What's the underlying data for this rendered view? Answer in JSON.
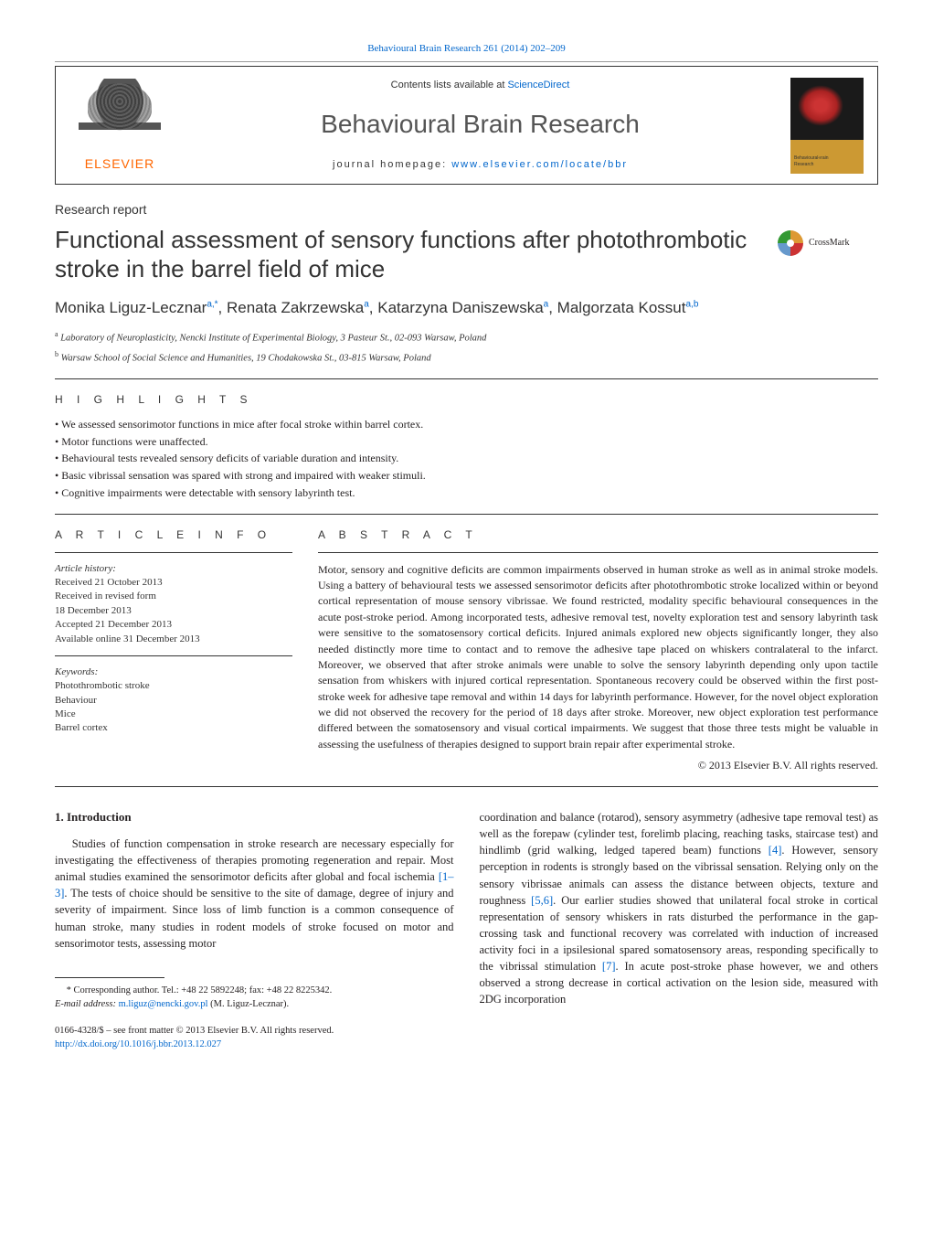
{
  "header": {
    "citation": "Behavioural Brain Research 261 (2014) 202–209",
    "publisher_name": "ELSEVIER",
    "contents_prefix": "Contents lists available at ",
    "contents_link": "ScienceDirect",
    "journal_title": "Behavioural Brain Research",
    "homepage_label": "journal homepage: ",
    "homepage_url": "www.elsevier.com/locate/bbr"
  },
  "article": {
    "report_type": "Research report",
    "title": "Functional assessment of sensory functions after photothrombotic stroke in the barrel field of mice",
    "crossmark_label": "CrossMark",
    "authors_html": "Monika Liguz-Lecznar<sup>a,*</sup>, Renata Zakrzewska<sup>a</sup>, Katarzyna Daniszewska<sup>a</sup>, Malgorzata Kossut<sup>a,b</sup>",
    "affiliations": [
      {
        "marker": "a",
        "text": "Laboratory of Neuroplasticity, Nencki Institute of Experimental Biology, 3 Pasteur St., 02-093 Warsaw, Poland"
      },
      {
        "marker": "b",
        "text": "Warsaw School of Social Science and Humanities, 19 Chodakowska St., 03-815 Warsaw, Poland"
      }
    ]
  },
  "highlights": {
    "label": "H I G H L I G H T S",
    "items": [
      "We assessed sensorimotor functions in mice after focal stroke within barrel cortex.",
      "Motor functions were unaffected.",
      "Behavioural tests revealed sensory deficits of variable duration and intensity.",
      "Basic vibrissal sensation was spared with strong and impaired with weaker stimuli.",
      "Cognitive impairments were detectable with sensory labyrinth test."
    ]
  },
  "info": {
    "label": "A R T I C L E   I N F O",
    "history_label": "Article history:",
    "history": [
      "Received 21 October 2013",
      "Received in revised form",
      "18 December 2013",
      "Accepted 21 December 2013",
      "Available online 31 December 2013"
    ],
    "keywords_label": "Keywords:",
    "keywords": [
      "Photothrombotic stroke",
      "Behaviour",
      "Mice",
      "Barrel cortex"
    ]
  },
  "abstract": {
    "label": "A B S T R A C T",
    "text": "Motor, sensory and cognitive deficits are common impairments observed in human stroke as well as in animal stroke models. Using a battery of behavioural tests we assessed sensorimotor deficits after photothrombotic stroke localized within or beyond cortical representation of mouse sensory vibrissae. We found restricted, modality specific behavioural consequences in the acute post-stroke period. Among incorporated tests, adhesive removal test, novelty exploration test and sensory labyrinth task were sensitive to the somatosensory cortical deficits. Injured animals explored new objects significantly longer, they also needed distinctly more time to contact and to remove the adhesive tape placed on whiskers contralateral to the infarct. Moreover, we observed that after stroke animals were unable to solve the sensory labyrinth depending only upon tactile sensation from whiskers with injured cortical representation. Spontaneous recovery could be observed within the first post-stroke week for adhesive tape removal and within 14 days for labyrinth performance. However, for the novel object exploration we did not observed the recovery for the period of 18 days after stroke. Moreover, new object exploration test performance differed between the somatosensory and visual cortical impairments. We suggest that those three tests might be valuable in assessing the usefulness of therapies designed to support brain repair after experimental stroke.",
    "copyright": "© 2013 Elsevier B.V. All rights reserved."
  },
  "body": {
    "section_number": "1.",
    "section_title": "Introduction",
    "col1": "Studies of function compensation in stroke research are necessary especially for investigating the effectiveness of therapies promoting regeneration and repair. Most animal studies examined the sensorimotor deficits after global and focal ischemia [1–3]. The tests of choice should be sensitive to the site of damage, degree of injury and severity of impairment. Since loss of limb function is a common consequence of human stroke, many studies in rodent models of stroke focused on motor and sensorimotor tests, assessing motor",
    "col1_ref": "[1–3]",
    "col2": "coordination and balance (rotarod), sensory asymmetry (adhesive tape removal test) as well as the forepaw (cylinder test, forelimb placing, reaching tasks, staircase test) and hindlimb (grid walking, ledged tapered beam) functions [4]. However, sensory perception in rodents is strongly based on the vibrissal sensation. Relying only on the sensory vibrissae animals can assess the distance between objects, texture and roughness [5,6]. Our earlier studies showed that unilateral focal stroke in cortical representation of sensory whiskers in rats disturbed the performance in the gap-crossing task and functional recovery was correlated with induction of increased activity foci in a ipsilesional spared somatosensory areas, responding specifically to the vibrissal stimulation [7]. In acute post-stroke phase however, we and others observed a strong decrease in cortical activation on the lesion side, measured with 2DG incorporation",
    "col2_refs": [
      "[4]",
      "[5,6]",
      "[7]"
    ]
  },
  "footnote": {
    "marker": "*",
    "text": "Corresponding author. Tel.: +48 22 5892248; fax: +48 22 8225342.",
    "email_label": "E-mail address: ",
    "email": "m.liguz@nencki.gov.pl",
    "email_owner": " (M. Liguz-Lecznar)."
  },
  "footer": {
    "issn_line": "0166-4328/$ – see front matter © 2013 Elsevier B.V. All rights reserved.",
    "doi": "http://dx.doi.org/10.1016/j.bbr.2013.12.027"
  },
  "colors": {
    "link": "#0066cc",
    "text": "#231f20",
    "publisher": "#ff6600",
    "rule": "#333333"
  }
}
